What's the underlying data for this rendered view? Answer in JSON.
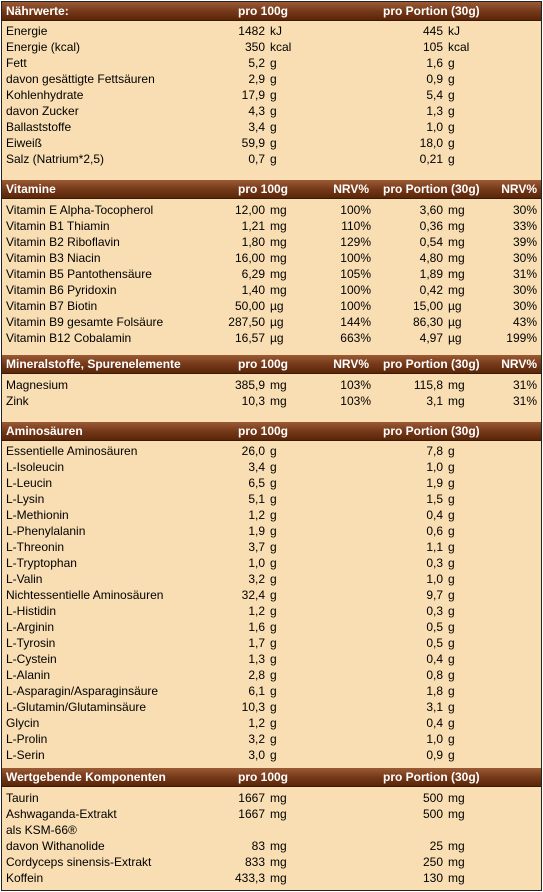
{
  "colors": {
    "header": "#733718",
    "background": "#f8deb2"
  },
  "sections": [
    {
      "title": "Nährwerte:",
      "columns": [
        "pro 100g",
        "",
        "pro Portion (30g)",
        ""
      ],
      "rows": [
        {
          "name": "Energie",
          "v1": "1482",
          "u1": "kJ",
          "v2": "445",
          "u2": "kJ"
        },
        {
          "name": "Energie (kcal)",
          "v1": "350",
          "u1": "kcal",
          "v2": "105",
          "u2": "kcal"
        },
        {
          "name": "Fett",
          "v1": "5,2",
          "u1": "g",
          "v2": "1,6",
          "u2": "g"
        },
        {
          "name": "davon gesättigte Fettsäuren",
          "v1": "2,9",
          "u1": "g",
          "v2": "0,9",
          "u2": "g"
        },
        {
          "name": "Kohlenhydrate",
          "v1": "17,9",
          "u1": "g",
          "v2": "5,4",
          "u2": "g"
        },
        {
          "name": "davon Zucker",
          "v1": "4,3",
          "u1": "g",
          "v2": "1,3",
          "u2": "g"
        },
        {
          "name": "Ballaststoffe",
          "v1": "3,4",
          "u1": "g",
          "v2": "1,0",
          "u2": "g"
        },
        {
          "name": "Eiweiß",
          "v1": "59,9",
          "u1": "g",
          "v2": "18,0",
          "u2": "g"
        },
        {
          "name": "Salz (Natrium*2,5)",
          "v1": "0,7",
          "u1": "g",
          "v2": "0,21",
          "u2": "g"
        }
      ]
    },
    {
      "title": "Vitamine",
      "columns": [
        "pro 100g",
        "NRV%",
        "pro Portion (30g)",
        "NRV%"
      ],
      "rows": [
        {
          "name": "Vitamin E Alpha-Tocopherol",
          "v1": "12,00",
          "u1": "mg",
          "n1": "100%",
          "v2": "3,60",
          "u2": "mg",
          "n2": "30%"
        },
        {
          "name": "Vitamin B1 Thiamin",
          "v1": "1,21",
          "u1": "mg",
          "n1": "110%",
          "v2": "0,36",
          "u2": "mg",
          "n2": "33%"
        },
        {
          "name": "Vitamin B2 Riboflavin",
          "v1": "1,80",
          "u1": "mg",
          "n1": "129%",
          "v2": "0,54",
          "u2": "mg",
          "n2": "39%"
        },
        {
          "name": "Vitamin B3 Niacin",
          "v1": "16,00",
          "u1": "mg",
          "n1": "100%",
          "v2": "4,80",
          "u2": "mg",
          "n2": "30%"
        },
        {
          "name": "Vitamin B5 Pantothensäure",
          "v1": "6,29",
          "u1": "mg",
          "n1": "105%",
          "v2": "1,89",
          "u2": "mg",
          "n2": "31%"
        },
        {
          "name": "Vitamin B6 Pyridoxin",
          "v1": "1,40",
          "u1": "mg",
          "n1": "100%",
          "v2": "0,42",
          "u2": "mg",
          "n2": "30%"
        },
        {
          "name": "Vitamin B7 Biotin",
          "v1": "50,00",
          "u1": "µg",
          "n1": "100%",
          "v2": "15,00",
          "u2": "µg",
          "n2": "30%"
        },
        {
          "name": "Vitamin B9 gesamte Folsäure",
          "v1": "287,50",
          "u1": "µg",
          "n1": "144%",
          "v2": "86,30",
          "u2": "µg",
          "n2": "43%"
        },
        {
          "name": "Vitamin B12 Cobalamin",
          "v1": "16,57",
          "u1": "µg",
          "n1": "663%",
          "v2": "4,97",
          "u2": "µg",
          "n2": "199%"
        }
      ]
    },
    {
      "title": "Mineralstoffe, Spurenelemente",
      "columns": [
        "pro 100g",
        "NRV%",
        "pro Portion (30g)",
        "NRV%"
      ],
      "rows": [
        {
          "name": "Magnesium",
          "v1": "385,9",
          "u1": "mg",
          "n1": "103%",
          "v2": "115,8",
          "u2": "mg",
          "n2": "31%"
        },
        {
          "name": "Zink",
          "v1": "10,3",
          "u1": "mg",
          "n1": "103%",
          "v2": "3,1",
          "u2": "mg",
          "n2": "31%"
        }
      ]
    },
    {
      "title": "Aminosäuren",
      "columns": [
        "pro 100g",
        "",
        "pro Portion (30g)",
        ""
      ],
      "rows": [
        {
          "name": "Essentielle Aminosäuren",
          "v1": "26,0",
          "u1": "g",
          "v2": "7,8",
          "u2": "g"
        },
        {
          "name": "L-Isoleucin",
          "v1": "3,4",
          "u1": "g",
          "v2": "1,0",
          "u2": "g"
        },
        {
          "name": "L-Leucin",
          "v1": "6,5",
          "u1": "g",
          "v2": "1,9",
          "u2": "g"
        },
        {
          "name": "L-Lysin",
          "v1": "5,1",
          "u1": "g",
          "v2": "1,5",
          "u2": "g"
        },
        {
          "name": "L-Methionin",
          "v1": "1,2",
          "u1": "g",
          "v2": "0,4",
          "u2": "g"
        },
        {
          "name": "L-Phenylalanin",
          "v1": "1,9",
          "u1": "g",
          "v2": "0,6",
          "u2": "g"
        },
        {
          "name": "L-Threonin",
          "v1": "3,7",
          "u1": "g",
          "v2": "1,1",
          "u2": "g"
        },
        {
          "name": "L-Tryptophan",
          "v1": "1,0",
          "u1": "g",
          "v2": "0,3",
          "u2": "g"
        },
        {
          "name": "L-Valin",
          "v1": "3,2",
          "u1": "g",
          "v2": "1,0",
          "u2": "g"
        },
        {
          "name": "Nichtessentielle Aminosäuren",
          "v1": "32,4",
          "u1": "g",
          "v2": "9,7",
          "u2": "g"
        },
        {
          "name": "L-Histidin",
          "v1": "1,2",
          "u1": "g",
          "v2": "0,3",
          "u2": "g"
        },
        {
          "name": "L-Arginin",
          "v1": "1,6",
          "u1": "g",
          "v2": "0,5",
          "u2": "g"
        },
        {
          "name": "L-Tyrosin",
          "v1": "1,7",
          "u1": "g",
          "v2": "0,5",
          "u2": "g"
        },
        {
          "name": "L-Cystein",
          "v1": "1,3",
          "u1": "g",
          "v2": "0,4",
          "u2": "g"
        },
        {
          "name": "L-Alanin",
          "v1": "2,8",
          "u1": "g",
          "v2": "0,8",
          "u2": "g"
        },
        {
          "name": "L-Asparagin/Asparaginsäure",
          "v1": "6,1",
          "u1": "g",
          "v2": "1,8",
          "u2": "g"
        },
        {
          "name": "L-Glutamin/Glutaminsäure",
          "v1": "10,3",
          "u1": "g",
          "v2": "3,1",
          "u2": "g"
        },
        {
          "name": "Glycin",
          "v1": "1,2",
          "u1": "g",
          "v2": "0,4",
          "u2": "g"
        },
        {
          "name": "L-Prolin",
          "v1": "3,2",
          "u1": "g",
          "v2": "1,0",
          "u2": "g"
        },
        {
          "name": "L-Serin",
          "v1": "3,0",
          "u1": "g",
          "v2": "0,9",
          "u2": "g"
        }
      ]
    },
    {
      "title": "Wertgebende Komponenten",
      "columns": [
        "pro 100g",
        "",
        "pro Portion (30g)",
        ""
      ],
      "rows": [
        {
          "name": "Taurin",
          "v1": "1667",
          "u1": "mg",
          "v2": "500",
          "u2": "mg"
        },
        {
          "name": "Ashwaganda-Extrakt",
          "v1": "1667",
          "u1": "mg",
          "v2": "500",
          "u2": "mg"
        },
        {
          "name": "als KSM-66®"
        },
        {
          "name": "davon Withanolide",
          "v1": "83",
          "u1": "mg",
          "v2": "25",
          "u2": "mg"
        },
        {
          "name": "Cordyceps sinensis-Extrakt",
          "v1": "833",
          "u1": "mg",
          "v2": "250",
          "u2": "mg"
        },
        {
          "name": "Koffein",
          "v1": "433,3",
          "u1": "mg",
          "v2": "130",
          "u2": "mg"
        }
      ]
    }
  ]
}
